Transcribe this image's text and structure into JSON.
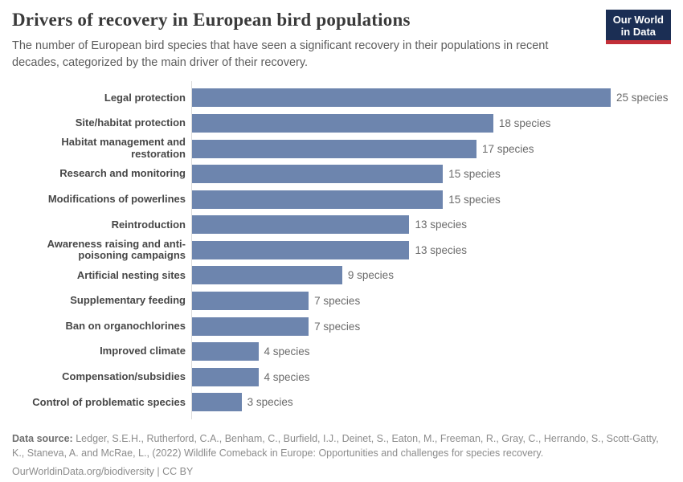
{
  "header": {
    "title": "Drivers of recovery in European bird populations",
    "subtitle": "The number of European bird species that have seen a significant recovery in their populations in recent decades, categorized by the main driver of their recovery.",
    "logo": {
      "line1": "Our World",
      "line2": "in Data"
    }
  },
  "chart_data": {
    "type": "bar",
    "orientation": "horizontal",
    "categories": [
      "Legal protection",
      "Site/habitat protection",
      "Habitat management and restoration",
      "Research and monitoring",
      "Modifications of powerlines",
      "Reintroduction",
      "Awareness raising and anti-poisoning campaigns",
      "Artificial nesting sites",
      "Supplementary feeding",
      "Ban on organochlorines",
      "Improved climate",
      "Compensation/subsidies",
      "Control of problematic species"
    ],
    "values": [
      25,
      18,
      17,
      15,
      15,
      13,
      13,
      9,
      7,
      7,
      4,
      4,
      3
    ],
    "value_label_suffix": " species",
    "xlim": [
      0,
      25
    ],
    "grid": false,
    "legend": false,
    "bar_color": "#6d85ae"
  },
  "footer": {
    "source_label": "Data source:",
    "source_text": " Ledger, S.E.H., Rutherford, C.A., Benham, C., Burfield, I.J., Deinet, S., Eaton, M., Freeman, R., Gray, C., Herrando, S., Scott-Gatty, K., Staneva, A. and McRae, L., (2022) Wildlife Comeback in Europe: Opportunities and challenges for species recovery.",
    "link": "OurWorldinData.org/biodiversity",
    "separator": " | ",
    "license": "CC BY"
  },
  "colors": {
    "bar": "#6d85ae",
    "navy": "#1b2e54",
    "red": "#c22f38",
    "axis": "#dcdcdc"
  }
}
